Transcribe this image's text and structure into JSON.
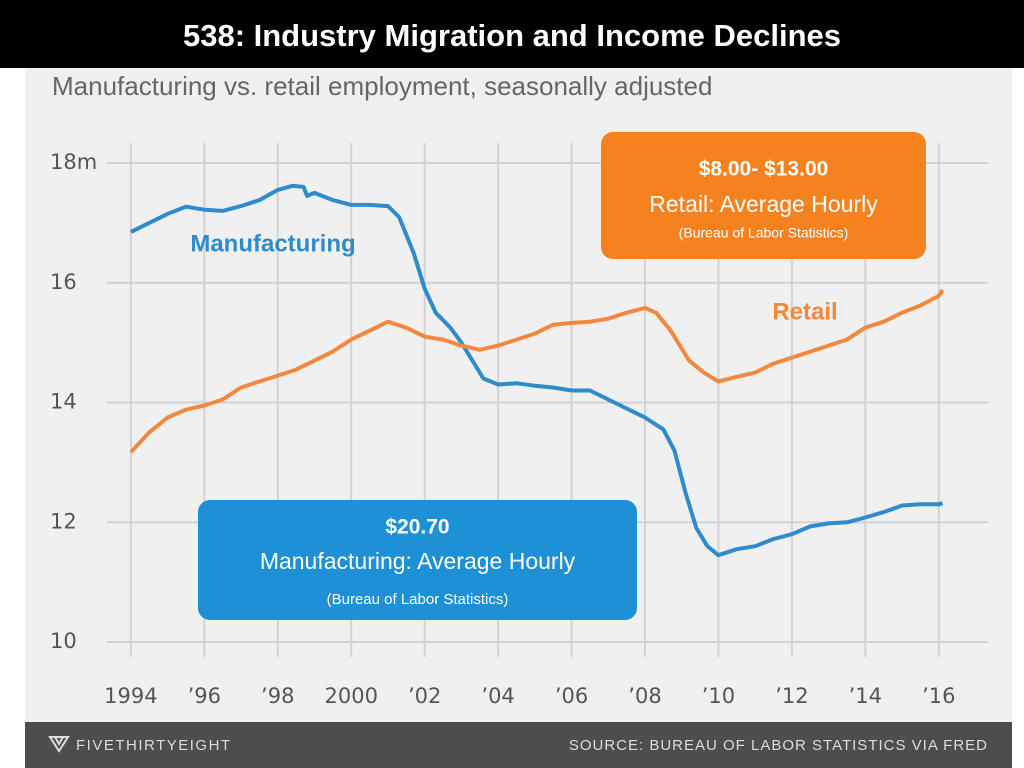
{
  "chart_data": {
    "type": "line",
    "title": "538: Industry Migration and Income Declines",
    "subtitle": "Manufacturing vs. retail employment, seasonally adjusted",
    "brand": "FIVETHIRTYEIGHT",
    "source": "SOURCE: BUREAU OF LABOR STATISTICS VIA FRED",
    "xlim": [
      1993.35,
      2017.34
    ],
    "xticks": [
      1994,
      {
        "value": 1996,
        "label": "’96"
      },
      {
        "value": 1998,
        "label": "’98"
      },
      2000,
      {
        "value": 2002,
        "label": "’02"
      },
      {
        "value": 2004,
        "label": "’04"
      },
      {
        "value": 2006,
        "label": "’06"
      },
      {
        "value": 2008,
        "label": "’08"
      },
      {
        "value": 2010,
        "label": "’10"
      },
      {
        "value": 2012,
        "label": "’12"
      },
      {
        "value": 2014,
        "label": "’14"
      },
      {
        "value": 2016,
        "label": "’16"
      }
    ],
    "ylim": [
      10,
      18
    ],
    "yticks": [
      {
        "value": 18,
        "label": "18m"
      },
      16,
      14,
      12,
      10
    ],
    "grid": true,
    "series": [
      {
        "name": "Manufacturing",
        "color": "#2f8ccb",
        "x": [
          1994,
          1994.5,
          1995,
          1995.5,
          1996,
          1996.5,
          1997,
          1997.5,
          1998,
          1998.4,
          1998.7,
          1998.8,
          1999,
          1999.5,
          2000,
          2000.5,
          2001,
          2001.3,
          2001.7,
          2002,
          2002.3,
          2002.7,
          2003,
          2003.3,
          2003.6,
          2004,
          2004.5,
          2005,
          2005.5,
          2006,
          2006.5,
          2007,
          2007.5,
          2008,
          2008.5,
          2008.8,
          2009.1,
          2009.4,
          2009.7,
          2010,
          2010.5,
          2011,
          2011.5,
          2012,
          2012.5,
          2013,
          2013.5,
          2014,
          2014.5,
          2015,
          2015.5,
          2016,
          2016.1
        ],
        "values": [
          16.85,
          17.0,
          17.15,
          17.27,
          17.22,
          17.2,
          17.28,
          17.38,
          17.55,
          17.62,
          17.6,
          17.45,
          17.5,
          17.38,
          17.3,
          17.3,
          17.28,
          17.1,
          16.5,
          15.9,
          15.5,
          15.25,
          15.0,
          14.7,
          14.4,
          14.3,
          14.32,
          14.28,
          14.25,
          14.2,
          14.2,
          14.05,
          13.9,
          13.75,
          13.55,
          13.2,
          12.5,
          11.9,
          11.6,
          11.45,
          11.55,
          11.6,
          11.72,
          11.8,
          11.93,
          11.98,
          12.0,
          12.08,
          12.17,
          12.28,
          12.3,
          12.3,
          12.32
        ]
      },
      {
        "name": "Retail",
        "color": "#f2883e",
        "x": [
          1994,
          1994.5,
          1995,
          1995.5,
          1996,
          1996.5,
          1997,
          1997.5,
          1998,
          1998.5,
          1999,
          1999.5,
          2000,
          2000.5,
          2001,
          2001.5,
          2002,
          2002.5,
          2003,
          2003.5,
          2004,
          2004.5,
          2005,
          2005.5,
          2006,
          2006.5,
          2007,
          2007.5,
          2008,
          2008.3,
          2008.7,
          2009.2,
          2009.6,
          2010,
          2010.5,
          2011,
          2011.5,
          2012,
          2012.5,
          2013,
          2013.5,
          2014,
          2014.5,
          2015,
          2015.5,
          2016,
          2016.1
        ],
        "values": [
          13.17,
          13.5,
          13.75,
          13.88,
          13.95,
          14.05,
          14.25,
          14.35,
          14.45,
          14.55,
          14.7,
          14.85,
          15.05,
          15.2,
          15.35,
          15.25,
          15.1,
          15.05,
          14.95,
          14.88,
          14.95,
          15.05,
          15.15,
          15.3,
          15.33,
          15.35,
          15.4,
          15.5,
          15.58,
          15.5,
          15.2,
          14.7,
          14.5,
          14.35,
          14.43,
          14.5,
          14.65,
          14.75,
          14.85,
          14.95,
          15.05,
          15.25,
          15.35,
          15.5,
          15.62,
          15.78,
          15.88
        ]
      }
    ],
    "annotations": [
      {
        "color": "#f5821f",
        "lines": [
          "$8.00- $13.00",
          "Retail: Average Hourly",
          "(Bureau of Labor Statistics)"
        ]
      },
      {
        "color": "#1e90d6",
        "lines": [
          "$20.70",
          "Manufacturing: Average Hourly",
          "(Bureau of Labor Statistics)"
        ]
      }
    ]
  }
}
